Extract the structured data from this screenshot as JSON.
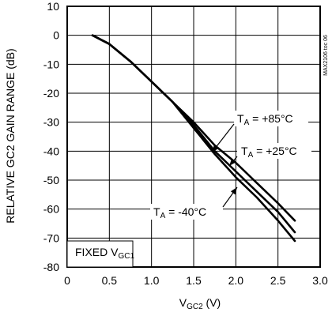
{
  "chart_data": {
    "type": "line",
    "title": "",
    "ylabel": "RELATIVE GC2 GAIN RANGE (dB)",
    "xlabel": {
      "main": "V",
      "sub": "GC2",
      "unit": " (V)"
    },
    "xlim": [
      0,
      3.0
    ],
    "ylim": [
      -80,
      10
    ],
    "xticks": [
      0,
      0.5,
      1.0,
      1.5,
      2.0,
      2.5,
      3.0
    ],
    "xtick_labels": [
      "0",
      "0.5",
      "1.0",
      "1.5",
      "2.0",
      "2.5",
      "3.0"
    ],
    "yticks": [
      10,
      0,
      -10,
      -20,
      -30,
      -40,
      -50,
      -60,
      -70,
      -80
    ],
    "ytick_labels": [
      "10",
      "0",
      "-10",
      "-20",
      "-30",
      "-40",
      "-50",
      "-60",
      "-70",
      "-80"
    ],
    "grid": true,
    "series": [
      {
        "key": "p85",
        "x": [
          0.3,
          0.5,
          0.75,
          1.0,
          1.25,
          1.5,
          1.75,
          2.0,
          2.25,
          2.5,
          2.7
        ],
        "y": [
          0,
          -3,
          -9,
          -16,
          -23,
          -30,
          -38,
          -44,
          -51,
          -58,
          -64
        ]
      },
      {
        "key": "p25",
        "x": [
          0.3,
          0.5,
          0.75,
          1.0,
          1.25,
          1.5,
          1.75,
          2.0,
          2.25,
          2.5,
          2.7
        ],
        "y": [
          0,
          -3,
          -9,
          -16,
          -23,
          -31,
          -40,
          -47,
          -54,
          -61,
          -68
        ]
      },
      {
        "key": "m40",
        "x": [
          0.3,
          0.5,
          0.75,
          1.0,
          1.25,
          1.5,
          1.75,
          2.0,
          2.25,
          2.5,
          2.7
        ],
        "y": [
          0,
          -3,
          -9,
          -16,
          -23,
          -32,
          -41,
          -49,
          -56,
          -64,
          -71
        ]
      }
    ],
    "annotations": [
      {
        "key": "p85",
        "text_main": "T",
        "text_sub": "A",
        "text_rest": " = +85°C"
      },
      {
        "key": "p25",
        "text_main": "T",
        "text_sub": "A",
        "text_rest": " = +25°C"
      },
      {
        "key": "m40",
        "text_main": "T",
        "text_sub": "A",
        "text_rest": " = -40°C"
      }
    ],
    "condition_label": {
      "main": "FIXED V",
      "sub": "GC1"
    },
    "code_text": "MAX2106 toc 06"
  }
}
